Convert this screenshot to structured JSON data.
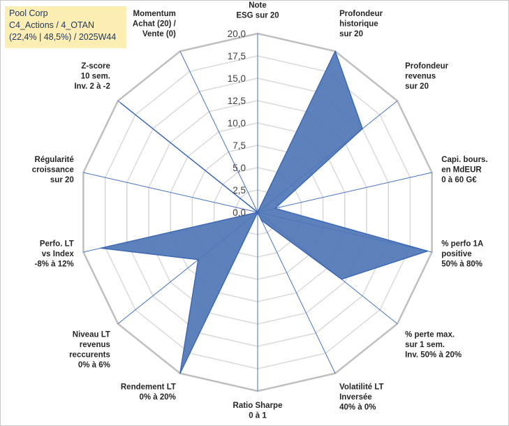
{
  "chart_data": {
    "type": "radar",
    "title_lines": [
      "Pool Corp",
      "C4_Actions / 4_OTAN",
      "(22,4% | 48,5%) / 2025W44"
    ],
    "rmin": 0,
    "rmax": 20,
    "tick_labels": [
      "0,0",
      "2,5",
      "5,0",
      "7,5",
      "10,0",
      "12,5",
      "15,0",
      "17,5",
      "20,0"
    ],
    "axes": [
      {
        "label": [
          "Note",
          "ESG sur 20"
        ],
        "value": 0
      },
      {
        "label": [
          "Profondeur",
          "historique",
          "sur 20"
        ],
        "value": 20
      },
      {
        "label": [
          "Profondeur",
          "revenus",
          "sur 20"
        ],
        "value": 15
      },
      {
        "label": [
          "Capi. bours.",
          "en MdEUR",
          "0 à 60 G€"
        ],
        "value": 2
      },
      {
        "label": [
          "% perfo 1A",
          "positive",
          "50% à 80%"
        ],
        "value": 19.5
      },
      {
        "label": [
          "% perte max.",
          "sur 1 sem.",
          "Inv. 50% à 20%"
        ],
        "value": 12
      },
      {
        "label": [
          "Volatilité LT",
          "Inversée",
          "40% à 0%"
        ],
        "value": 1
      },
      {
        "label": [
          "Ratio Sharpe",
          "0 à 1"
        ],
        "value": 0
      },
      {
        "label": [
          "Rendement LT",
          "0% à 20%"
        ],
        "value": 20
      },
      {
        "label": [
          "Niveau LT",
          "revenus",
          "reccurents",
          "0% à 6%"
        ],
        "value": 8.5
      },
      {
        "label": [
          "Perfo. LT",
          "vs Index",
          "-8% à 12%"
        ],
        "value": 18
      },
      {
        "label": [
          "Régularité",
          "croissance",
          "sur 20"
        ],
        "value": 0
      },
      {
        "label": [
          "Z-score",
          "10 sem.",
          "Inv. 2 à -2"
        ],
        "value": 19.6
      },
      {
        "label": [
          "Momentum",
          "Achat (20) /",
          "Vente (0)"
        ],
        "value": 0
      }
    ],
    "series_color": "#4f76b5",
    "series_stroke": "#3d68b8",
    "grid_color": "#d9d9d9",
    "outer_ring_color": "#bfbfbf",
    "spoke_color": "#4472c4"
  }
}
